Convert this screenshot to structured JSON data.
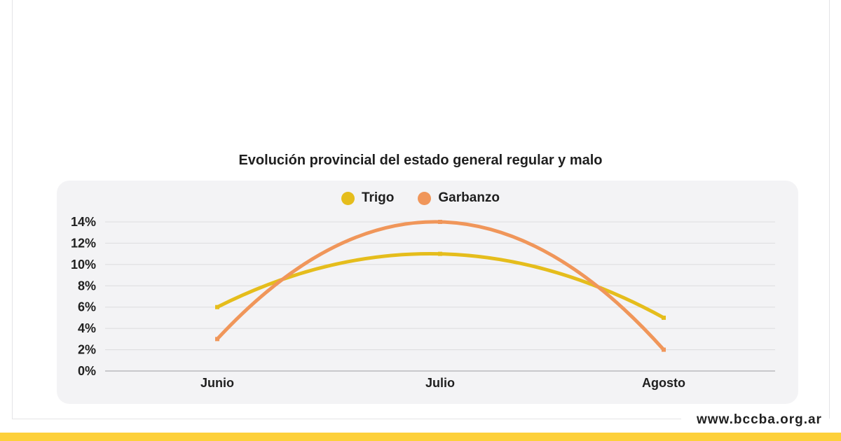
{
  "chart_data": {
    "type": "line",
    "title": "Evolución provincial del estado general regular y malo",
    "categories": [
      "Junio",
      "Julio",
      "Agosto"
    ],
    "series": [
      {
        "name": "Trigo",
        "values": [
          6,
          11,
          5
        ],
        "color": "#e5bd1c"
      },
      {
        "name": "Garbanzo",
        "values": [
          3,
          14,
          2
        ],
        "color": "#f0965a"
      }
    ],
    "y_ticks": [
      "0%",
      "2%",
      "4%",
      "6%",
      "8%",
      "10%",
      "12%",
      "14%"
    ],
    "ylim": [
      0,
      14
    ],
    "y_unit": "%",
    "grid": true,
    "legend_position": "top-center",
    "smooth": true
  },
  "footer": {
    "website": "www.bccba.org.ar"
  },
  "colors": {
    "panel_background": "#f3f3f5",
    "accent_bar": "#fdd03a",
    "gridline": "#dcdcde"
  }
}
